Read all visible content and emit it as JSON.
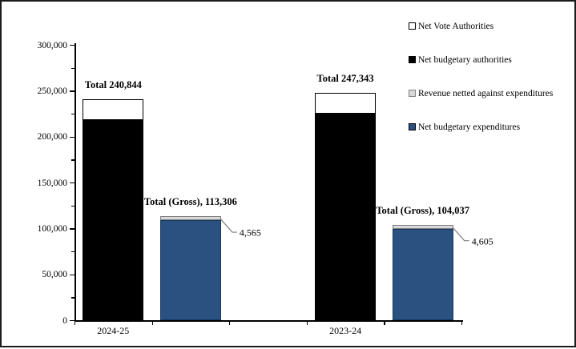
{
  "chart_data": {
    "type": "bar",
    "title": "",
    "y_axis": {
      "min": 0,
      "max": 300000,
      "major_step": 50000,
      "minor_step": 25000,
      "tick_labels": [
        "0",
        "50,000",
        "100,000",
        "150,000",
        "200,000",
        "250,000",
        "300,000"
      ]
    },
    "categories": [
      "2024-25",
      "2023-24"
    ],
    "legend": [
      {
        "name": "net-vote-authorities",
        "label": "Net Vote Authorities",
        "color": "#FFFFFF",
        "border": "#000000"
      },
      {
        "name": "net-budgetary-authorities",
        "label": "Net budgetary authorities",
        "color": "#000000",
        "border": "#000000"
      },
      {
        "name": "revenue-netted-against-expenditures",
        "label": "Revenue netted against expenditures",
        "color": "#D9D9D9",
        "border": "#7F7F7F"
      },
      {
        "name": "net-budgetary-expenditures",
        "label": "Net budgetary expenditures",
        "color": "#2B5180",
        "border": "#000000"
      }
    ],
    "bars": [
      {
        "category": "2024-25",
        "slot": 0,
        "total": 240844,
        "total_label": "Total 240,844",
        "segments": [
          {
            "series": "Net budgetary authorities",
            "value": 218102,
            "label": "218,102",
            "color": "#000000",
            "border": "#000000",
            "label_color": "#FFFFFF"
          },
          {
            "series": "Net Vote Authorities",
            "value": 22742,
            "label": "22,742",
            "color": "#FFFFFF",
            "border": "#000000",
            "label_color": "#000000"
          }
        ]
      },
      {
        "category": "2024-25",
        "slot": 1,
        "total": 113306,
        "total_label": "Total (Gross), 113,306",
        "segments": [
          {
            "series": "Net budgetary expenditures",
            "value": 108741,
            "label": "108,741",
            "color": "#2B5180",
            "border": "#17375E",
            "label_color": "#FFFFFF"
          },
          {
            "series": "Revenue netted against expenditures",
            "value": 4565,
            "label": "",
            "color": "#D9D9D9",
            "border": "#7F7F7F",
            "label_color": "#000000",
            "callout_label": "4,565"
          }
        ]
      },
      {
        "category": "2023-24",
        "slot": 3,
        "total": 247343,
        "total_label": "Total 247,343",
        "segments": [
          {
            "series": "Net budgetary authorities",
            "value": 224601,
            "label": "224,601",
            "color": "#000000",
            "border": "#000000",
            "label_color": "#FFFFFF"
          },
          {
            "series": "Net Vote Authorities",
            "value": 22742,
            "label": "22,742",
            "color": "#FFFFFF",
            "border": "#000000",
            "label_color": "#000000"
          }
        ]
      },
      {
        "category": "2023-24",
        "slot": 4,
        "total": 104037,
        "total_label": "Total (Gross), 104,037",
        "segments": [
          {
            "series": "Net budgetary expenditures",
            "value": 99432,
            "label": "99,432",
            "color": "#2B5180",
            "border": "#17375E",
            "label_color": "#FFFFFF"
          },
          {
            "series": "Revenue netted against expenditures",
            "value": 4605,
            "label": "",
            "color": "#D9D9D9",
            "border": "#7F7F7F",
            "label_color": "#000000",
            "callout_label": "4,605"
          }
        ]
      }
    ],
    "category_axis": {
      "num_slots": 5,
      "labels": [
        {
          "text": "2024-25",
          "slot": 0
        },
        {
          "text": "2023-24",
          "slot": 3
        }
      ]
    },
    "legend_position": "top-right",
    "grid": false
  }
}
